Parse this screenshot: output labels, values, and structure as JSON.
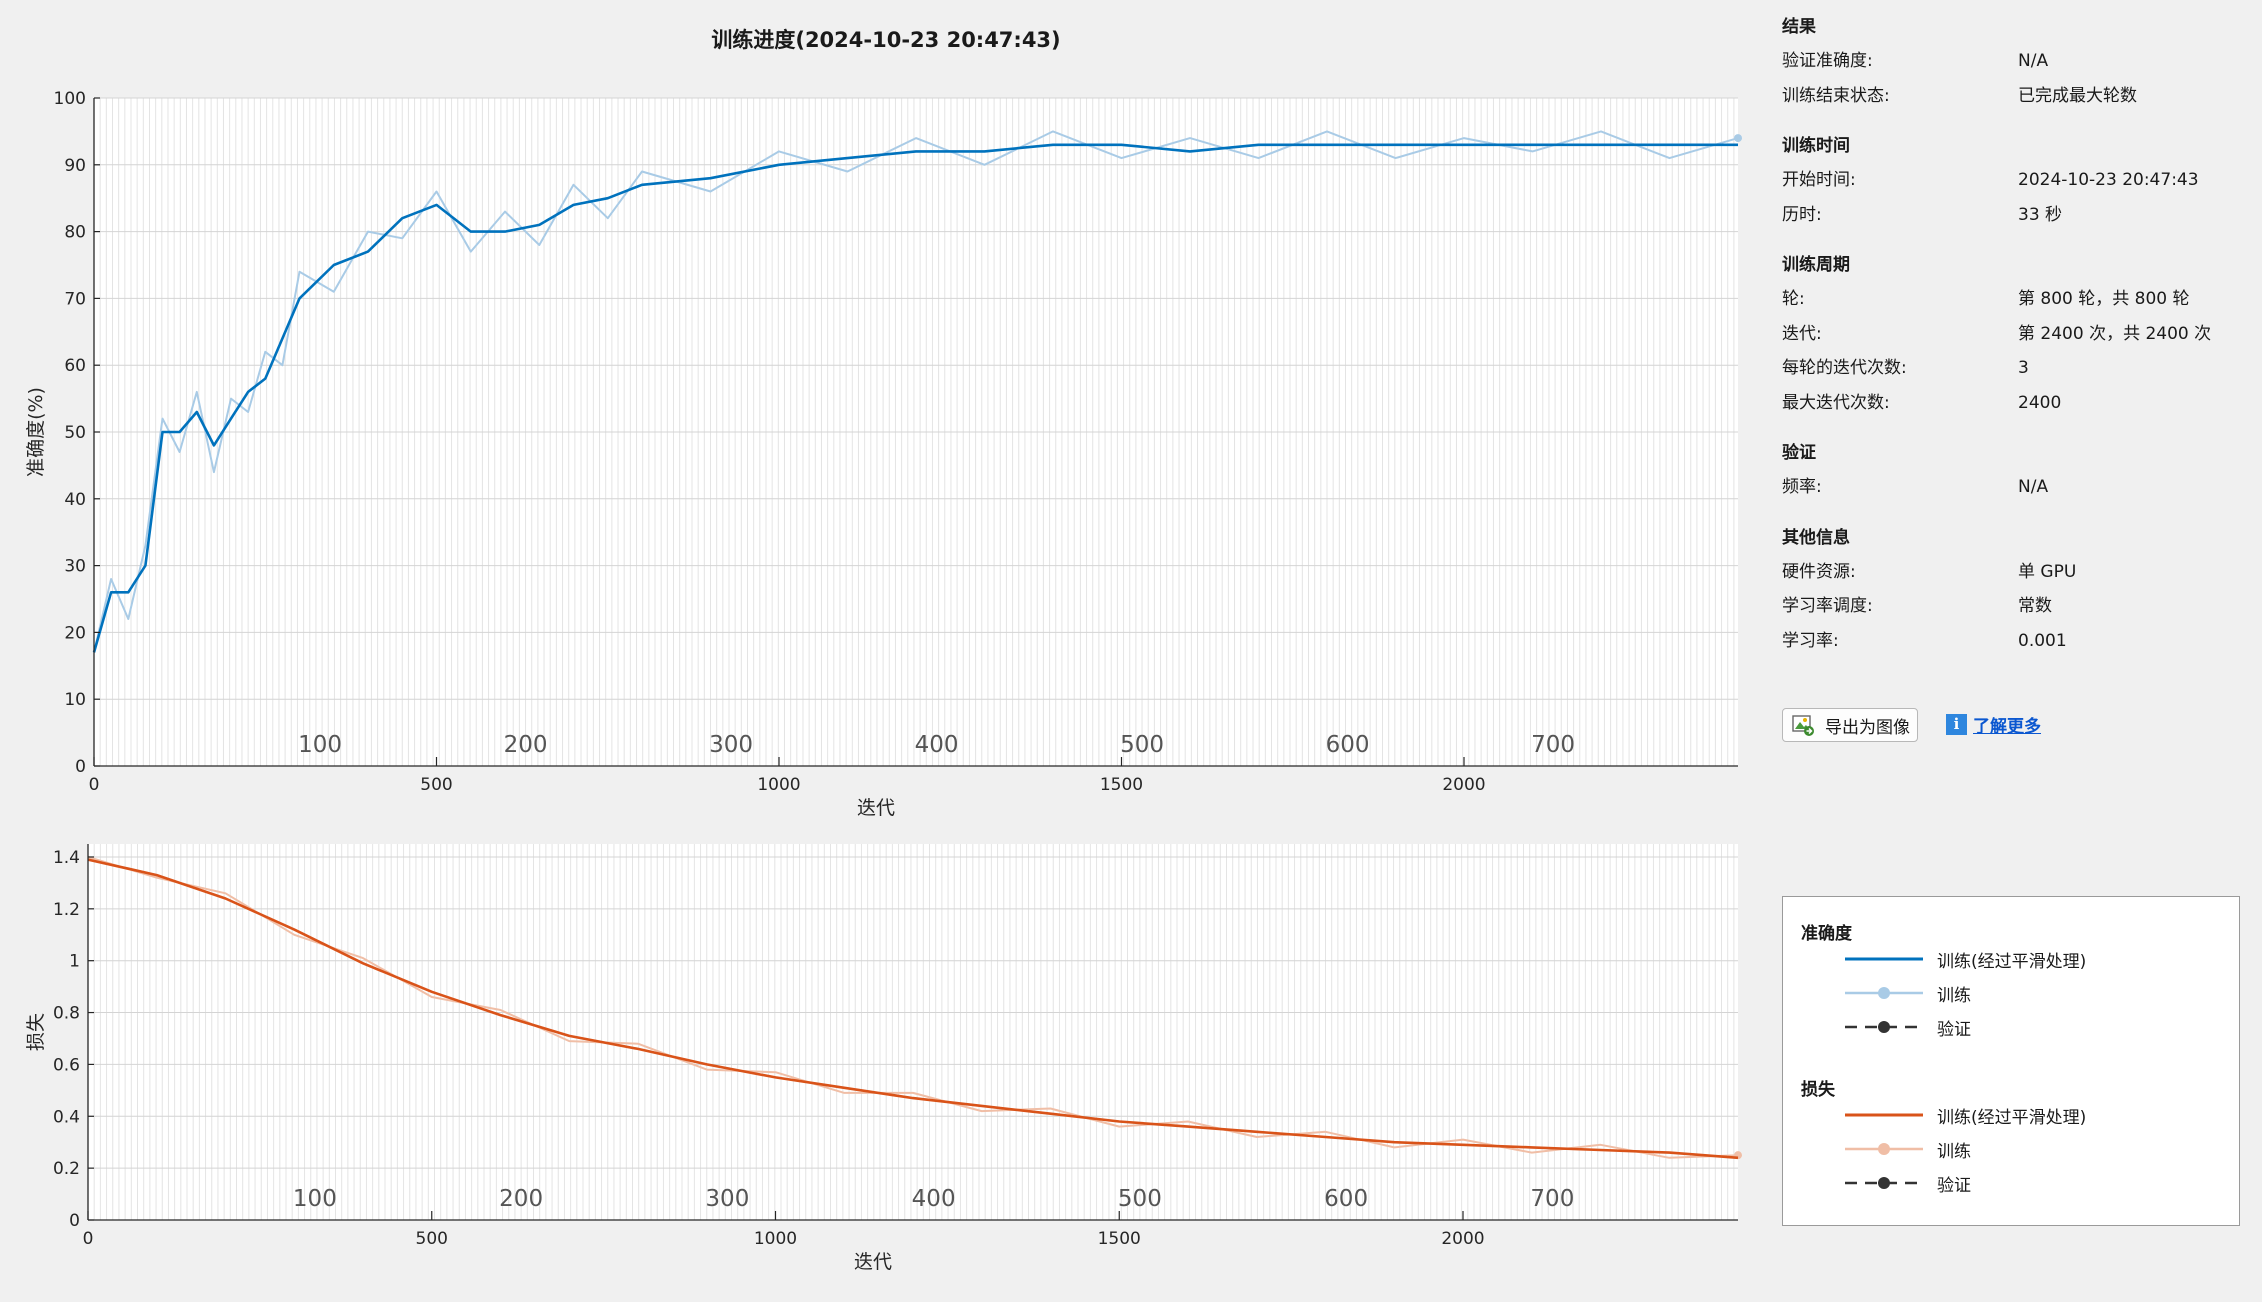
{
  "window": {
    "title": "训练进度(2024-10-23 20:47:43)"
  },
  "colors": {
    "accuracy_smoothed": "#0072bd",
    "accuracy_raw": "#a9cbe6",
    "loss_smoothed": "#d95319",
    "loss_raw": "#f0bea6",
    "validation": "#333333",
    "link": "#0b57d0"
  },
  "info": {
    "results": {
      "title": "结果",
      "rows": [
        {
          "label": "验证准确度:",
          "value": "N/A"
        },
        {
          "label": "训练结束状态:",
          "value": "已完成最大轮数"
        }
      ]
    },
    "time": {
      "title": "训练时间",
      "rows": [
        {
          "label": "开始时间:",
          "value": "2024-10-23 20:47:43"
        },
        {
          "label": "历时:",
          "value": "33 秒"
        }
      ]
    },
    "cycle": {
      "title": "训练周期",
      "rows": [
        {
          "label": "轮:",
          "value": "第 800 轮，共 800 轮"
        },
        {
          "label": "迭代:",
          "value": "第 2400 次，共 2400 次"
        },
        {
          "label": "每轮的迭代次数:",
          "value": "3"
        },
        {
          "label": "最大迭代次数:",
          "value": "2400"
        }
      ]
    },
    "validation": {
      "title": "验证",
      "rows": [
        {
          "label": "频率:",
          "value": "N/A"
        }
      ]
    },
    "other": {
      "title": "其他信息",
      "rows": [
        {
          "label": "硬件资源:",
          "value": "单 GPU"
        },
        {
          "label": "学习率调度:",
          "value": "常数"
        },
        {
          "label": "学习率:",
          "value": "0.001"
        }
      ]
    }
  },
  "buttons": {
    "export_label": "导出为图像",
    "export_icon": "image-export-icon",
    "learn_more_label": "了解更多",
    "learn_more_icon": "info-icon",
    "learn_more_icon_glyph": "i"
  },
  "legend": {
    "accuracy_title": "准确度",
    "loss_title": "损失",
    "smoothed_label": "训练(经过平滑处理)",
    "train_label": "训练",
    "validation_label": "验证"
  },
  "chart_data": [
    {
      "type": "line",
      "xlabel": "迭代",
      "ylabel": "准确度(%)",
      "xlim": [
        0,
        2400
      ],
      "ylim": [
        0,
        100
      ],
      "xticks": [
        0,
        500,
        1000,
        1500,
        2000
      ],
      "yticks": [
        0,
        10,
        20,
        30,
        40,
        50,
        60,
        70,
        80,
        90,
        100
      ],
      "epoch_labels": [
        "100",
        "200",
        "300",
        "400",
        "500",
        "600",
        "700"
      ],
      "epoch_label_x": [
        330,
        630,
        930,
        1230,
        1530,
        1830,
        2130
      ],
      "grid": true,
      "series": [
        {
          "name": "训练(经过平滑处理)",
          "x": [
            0,
            25,
            50,
            75,
            100,
            125,
            150,
            175,
            200,
            225,
            250,
            275,
            300,
            350,
            400,
            450,
            500,
            550,
            600,
            650,
            700,
            750,
            800,
            900,
            1000,
            1100,
            1200,
            1300,
            1400,
            1500,
            1600,
            1700,
            1800,
            1900,
            2000,
            2100,
            2200,
            2300,
            2400
          ],
          "y": [
            17,
            26,
            26,
            30,
            50,
            50,
            53,
            48,
            52,
            56,
            58,
            64,
            70,
            75,
            77,
            82,
            84,
            80,
            80,
            81,
            84,
            85,
            87,
            88,
            90,
            91,
            92,
            92,
            93,
            93,
            92,
            93,
            93,
            93,
            93,
            93,
            93,
            93,
            93
          ]
        },
        {
          "name": "训练",
          "x": [
            0,
            25,
            50,
            75,
            100,
            125,
            150,
            175,
            200,
            225,
            250,
            275,
            300,
            350,
            400,
            450,
            500,
            550,
            600,
            650,
            700,
            750,
            800,
            900,
            1000,
            1100,
            1200,
            1300,
            1400,
            1500,
            1600,
            1700,
            1800,
            1900,
            2000,
            2100,
            2200,
            2300,
            2400
          ],
          "y": [
            17,
            28,
            22,
            33,
            52,
            47,
            56,
            44,
            55,
            53,
            62,
            60,
            74,
            71,
            80,
            79,
            86,
            77,
            83,
            78,
            87,
            82,
            89,
            86,
            92,
            89,
            94,
            90,
            95,
            91,
            94,
            91,
            95,
            91,
            94,
            92,
            95,
            91,
            94
          ]
        }
      ]
    },
    {
      "type": "line",
      "xlabel": "迭代",
      "ylabel": "损失",
      "xlim": [
        0,
        2400
      ],
      "ylim": [
        0,
        1.45
      ],
      "xticks": [
        0,
        500,
        1000,
        1500,
        2000
      ],
      "yticks": [
        0,
        0.2,
        0.4,
        0.6,
        0.8,
        1,
        1.2,
        1.4
      ],
      "ytick_labels": [
        "0",
        "0.2",
        "0.4",
        "0.6",
        "0.8",
        "1",
        "1.2",
        "1.4"
      ],
      "epoch_labels": [
        "100",
        "200",
        "300",
        "400",
        "500",
        "600",
        "700"
      ],
      "epoch_label_x": [
        330,
        630,
        930,
        1230,
        1530,
        1830,
        2130
      ],
      "grid": true,
      "series": [
        {
          "name": "训练(经过平滑处理)",
          "x": [
            0,
            100,
            200,
            300,
            400,
            500,
            600,
            700,
            800,
            900,
            1000,
            1100,
            1200,
            1300,
            1400,
            1500,
            1600,
            1700,
            1800,
            1900,
            2000,
            2100,
            2200,
            2300,
            2400
          ],
          "y": [
            1.39,
            1.33,
            1.24,
            1.12,
            0.99,
            0.88,
            0.79,
            0.71,
            0.66,
            0.6,
            0.55,
            0.51,
            0.47,
            0.44,
            0.41,
            0.38,
            0.36,
            0.34,
            0.32,
            0.3,
            0.29,
            0.28,
            0.27,
            0.26,
            0.24
          ]
        },
        {
          "name": "训练",
          "x": [
            0,
            100,
            200,
            300,
            400,
            500,
            600,
            700,
            800,
            900,
            1000,
            1100,
            1200,
            1300,
            1400,
            1500,
            1600,
            1700,
            1800,
            1900,
            2000,
            2100,
            2200,
            2300,
            2400
          ],
          "y": [
            1.4,
            1.32,
            1.26,
            1.1,
            1.01,
            0.86,
            0.81,
            0.69,
            0.68,
            0.58,
            0.57,
            0.49,
            0.49,
            0.42,
            0.43,
            0.36,
            0.38,
            0.32,
            0.34,
            0.28,
            0.31,
            0.26,
            0.29,
            0.24,
            0.25
          ]
        }
      ]
    }
  ]
}
